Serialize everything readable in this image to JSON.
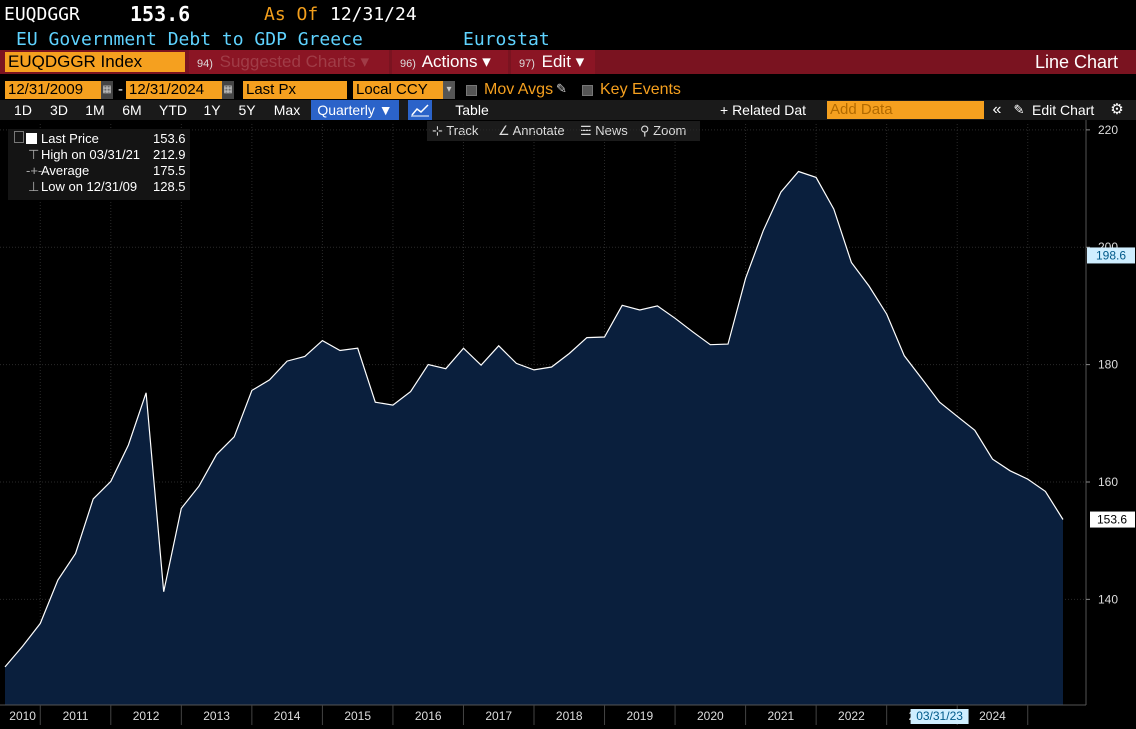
{
  "header": {
    "ticker": "EUQDGGR",
    "price": "153.6",
    "as_of_label": "As Of",
    "as_of_date": "12/31/24",
    "description": "EU Government Debt to GDP Greece",
    "source": "Eurostat"
  },
  "toolbar": {
    "security": "EUQDGGR Index",
    "suggested_num": "94)",
    "suggested_label": "Suggested Charts",
    "actions_num": "96)",
    "actions_label": "Actions",
    "edit_num": "97)",
    "edit_label": "Edit",
    "chart_type": "Line Chart",
    "dropdown_glyph": "▾"
  },
  "controls": {
    "start_date": "12/31/2009",
    "dash": "-",
    "end_date": "12/31/2024",
    "field": "Last Px",
    "currency": "Local CCY",
    "mov_avgs": "Mov Avgs",
    "key_events": "Key Events",
    "ranges": [
      "1D",
      "3D",
      "1M",
      "6M",
      "YTD",
      "1Y",
      "5Y",
      "Max"
    ],
    "periodicity": "Quarterly",
    "table": "Table",
    "related_data": "+ Related Dat",
    "add_data_placeholder": "Add Data",
    "edit_chart": "Edit Chart",
    "collapse_glyph": "«",
    "gear_glyph": "⚙"
  },
  "chart_tools": {
    "track": "Track",
    "annotate": "Annotate",
    "news": "News",
    "zoom": "Zoom"
  },
  "legend": {
    "last_price_label": "Last Price",
    "last_price_value": "153.6",
    "high_label": "High on 03/31/21",
    "high_value": "212.9",
    "average_label": "Average",
    "average_value": "175.5",
    "low_label": "Low on 12/31/09",
    "low_value": "128.5"
  },
  "colors": {
    "accent_orange": "#f5a01f",
    "header_cyan": "#5fd3ff",
    "toolbar_red": "#7a1320",
    "area_fill": "#0a1f3d",
    "line": "#ffffff"
  },
  "chart_data": {
    "type": "area",
    "title": "EU Government Debt to GDP Greece",
    "xlabel": "",
    "ylabel": "",
    "ylim": [
      122,
      221
    ],
    "yticks": [
      140,
      160,
      180,
      200,
      220
    ],
    "xticks": [
      "2010",
      "2011",
      "2012",
      "2013",
      "2014",
      "2015",
      "2016",
      "2017",
      "2018",
      "2019",
      "2020",
      "2021",
      "2022",
      "2023",
      "2024"
    ],
    "grid": true,
    "last_value_label": "153.6",
    "crosshair_y_label": "198.6",
    "crosshair_x_label": "03/31/23",
    "x": [
      "12/31/09",
      "03/31/10",
      "06/30/10",
      "09/30/10",
      "12/31/10",
      "03/31/11",
      "06/30/11",
      "09/30/11",
      "12/31/11",
      "03/31/12",
      "06/30/12",
      "09/30/12",
      "12/31/12",
      "03/31/13",
      "06/30/13",
      "09/30/13",
      "12/31/13",
      "03/31/14",
      "06/30/14",
      "09/30/14",
      "12/31/14",
      "03/31/15",
      "06/30/15",
      "09/30/15",
      "12/31/15",
      "03/31/16",
      "06/30/16",
      "09/30/16",
      "12/31/16",
      "03/31/17",
      "06/30/17",
      "09/30/17",
      "12/31/17",
      "03/31/18",
      "06/30/18",
      "09/30/18",
      "12/31/18",
      "03/31/19",
      "06/30/19",
      "09/30/19",
      "12/31/19",
      "03/31/20",
      "06/30/20",
      "09/30/20",
      "12/31/20",
      "03/31/21",
      "06/30/21",
      "09/30/21",
      "12/31/21",
      "03/31/22",
      "06/30/22",
      "09/30/22",
      "12/31/22",
      "03/31/23",
      "06/30/23",
      "09/30/23",
      "12/31/23",
      "03/31/24",
      "06/30/24",
      "09/30/24",
      "12/31/24"
    ],
    "series": [
      {
        "values": [
          128.5,
          132.0,
          135.9,
          143.3,
          147.8,
          157.1,
          160.1,
          166.3,
          175.2,
          141.3,
          155.5,
          159.3,
          164.7,
          167.7,
          175.6,
          177.4,
          180.6,
          181.4,
          184.1,
          182.4,
          182.8,
          173.6,
          173.1,
          175.4,
          180.0,
          179.3,
          182.8,
          179.9,
          183.2,
          180.2,
          179.1,
          179.6,
          181.9,
          184.6,
          184.7,
          190.1,
          189.3,
          190.0,
          187.9,
          185.6,
          183.4,
          183.5,
          194.7,
          202.8,
          209.4,
          212.9,
          211.9,
          206.5,
          197.4,
          193.4,
          188.6,
          181.5,
          177.6,
          173.6,
          171.2,
          168.8,
          163.9,
          161.9,
          160.5,
          158.4,
          153.6
        ]
      }
    ]
  }
}
